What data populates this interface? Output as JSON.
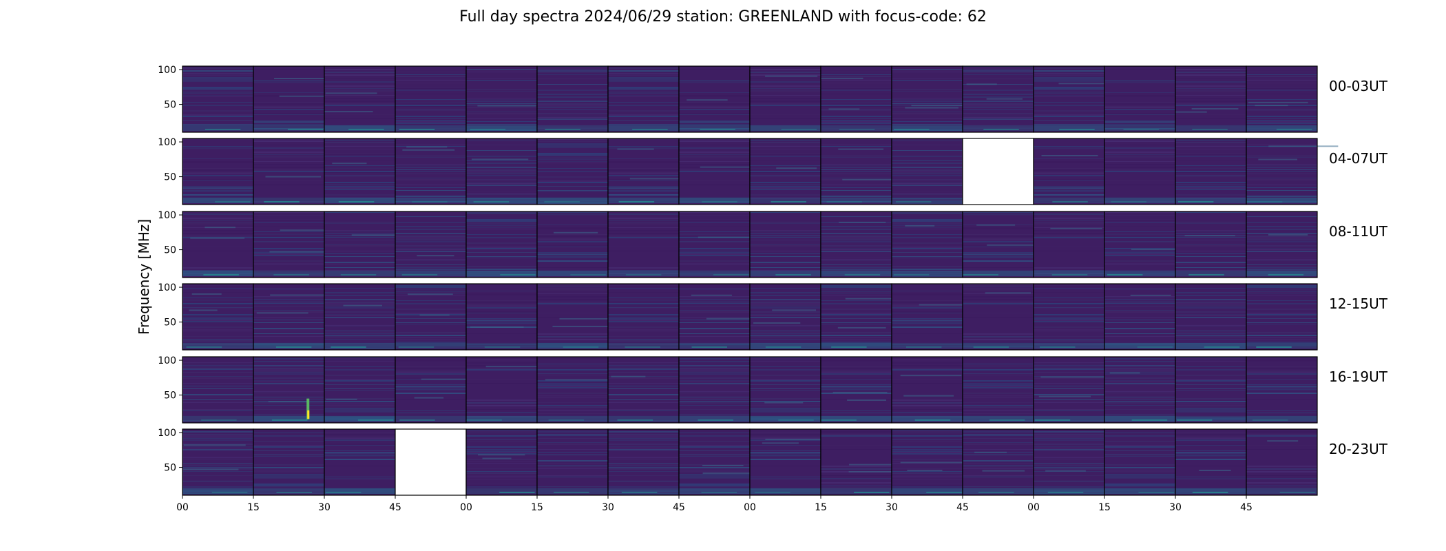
{
  "title": "Full day spectra 2024/06/29 station: GREENLAND with focus-code: 62",
  "colors": {
    "background_panel": "#3b1f5c",
    "missing_panel": "#ffffff",
    "colormap": [
      "#440154",
      "#3b528b",
      "#21918c",
      "#5ec962",
      "#fde725"
    ]
  },
  "chart_data": {
    "type": "heatmap",
    "title": "Full day spectra 2024/06/29 station: GREENLAND with focus-code: 62",
    "ylabel": "Frequency [MHz]",
    "xlabel": "",
    "ylim": [
      10,
      105
    ],
    "y_ticks": [
      50,
      100
    ],
    "x_tick_labels": [
      "00",
      "15",
      "30",
      "45",
      "00",
      "15",
      "30",
      "45",
      "00",
      "15",
      "30",
      "45",
      "00",
      "15",
      "30",
      "45"
    ],
    "grid": false,
    "rows": [
      {
        "label": "00-03UT",
        "missing_panels": []
      },
      {
        "label": "04-07UT",
        "missing_panels": [
          11
        ]
      },
      {
        "label": "08-11UT",
        "missing_panels": []
      },
      {
        "label": "12-15UT",
        "missing_panels": []
      },
      {
        "label": "16-19UT",
        "missing_panels": []
      },
      {
        "label": "20-23UT",
        "missing_panels": [
          3
        ]
      }
    ],
    "panels_per_row": 16,
    "panel_minutes": 15
  }
}
